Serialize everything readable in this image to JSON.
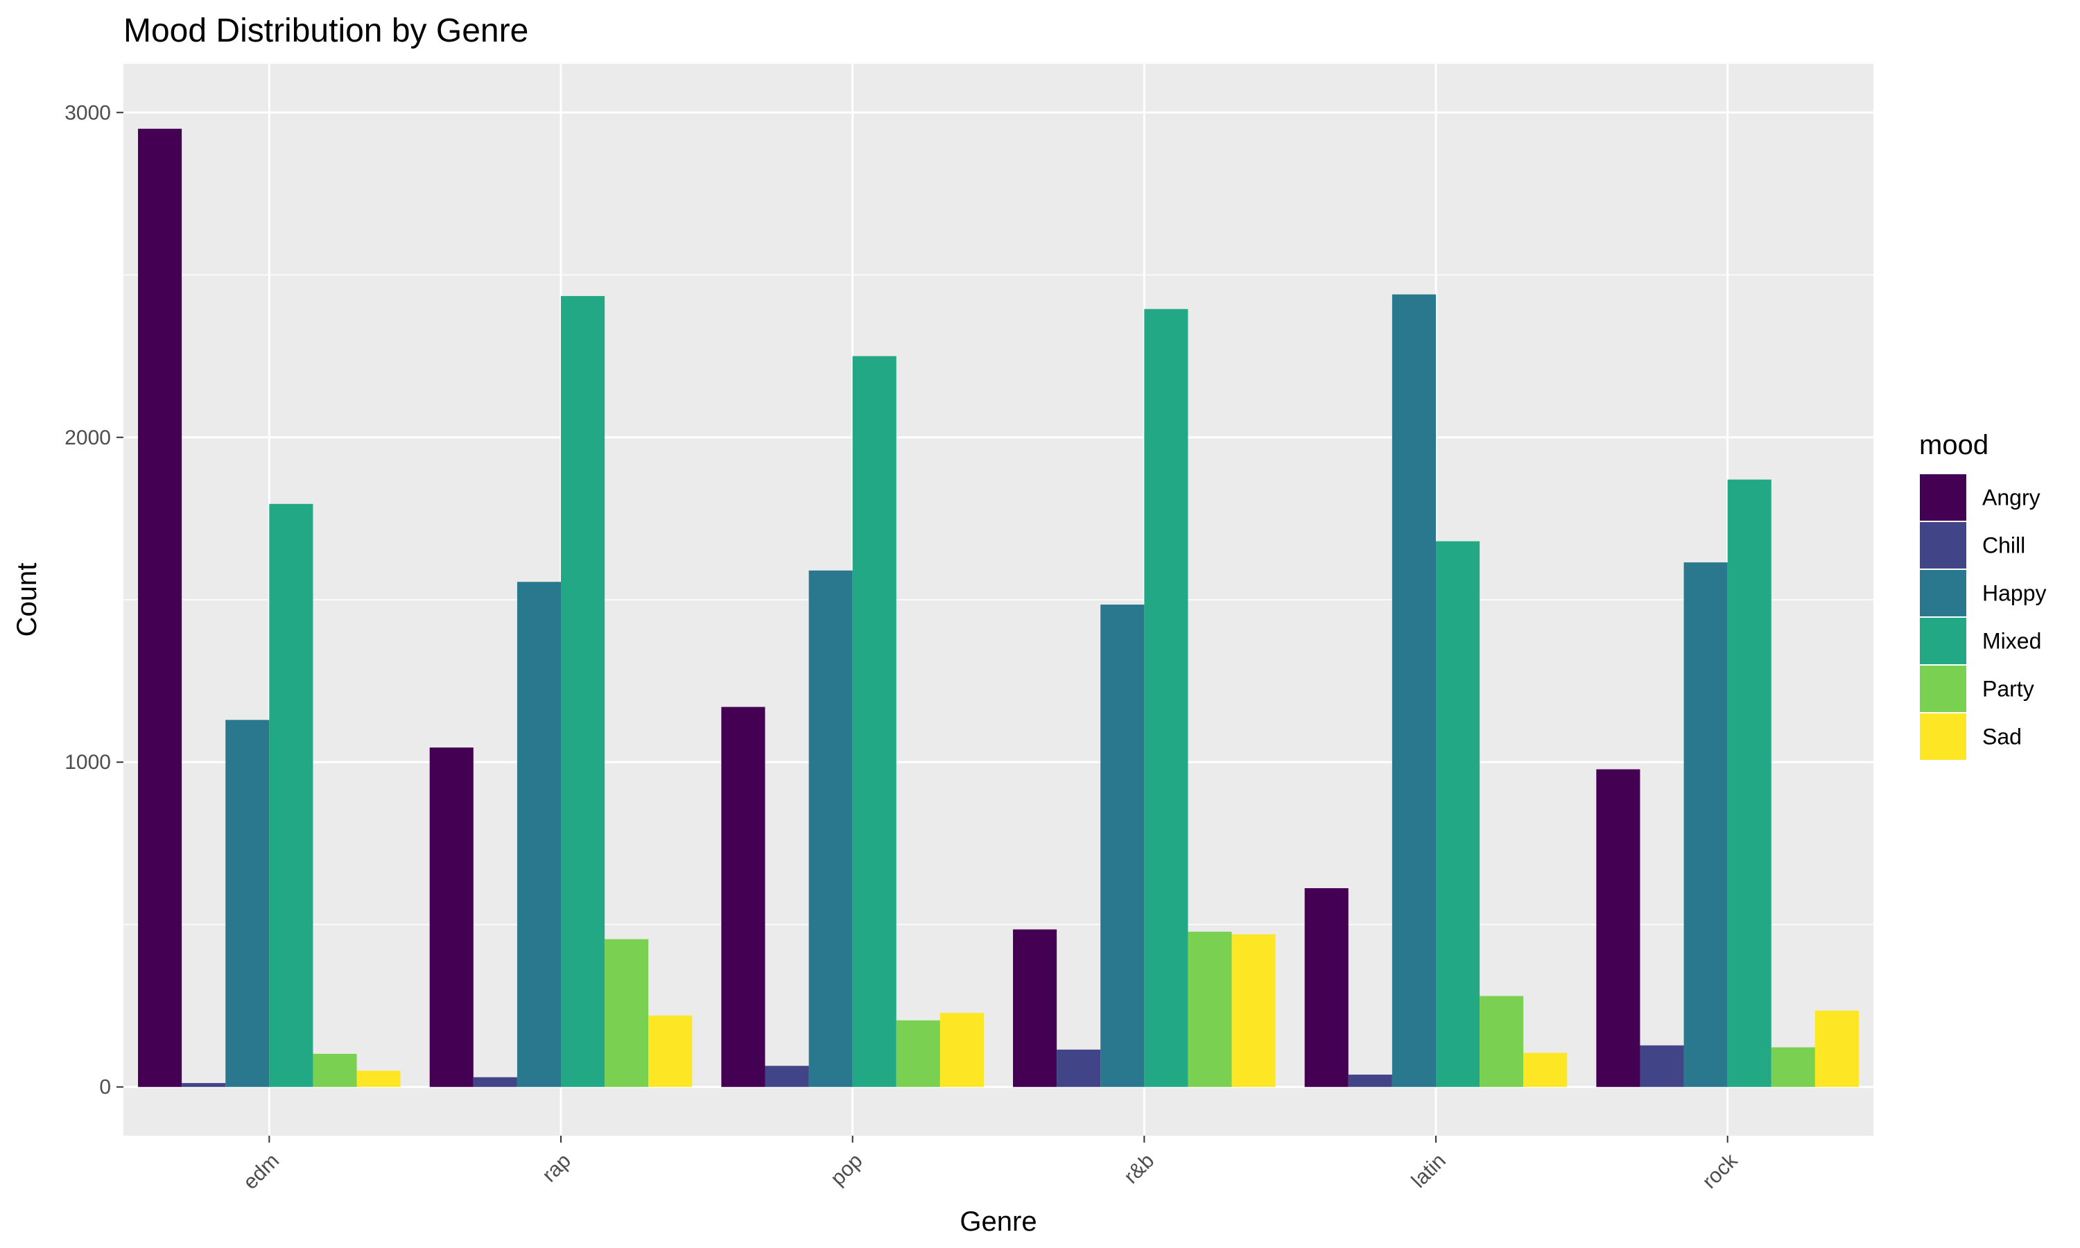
{
  "chart_data": {
    "type": "bar",
    "title": "Mood Distribution by Genre",
    "xlabel": "Genre",
    "ylabel": "Count",
    "categories": [
      "edm",
      "rap",
      "pop",
      "r&b",
      "latin",
      "rock"
    ],
    "yticks": [
      0,
      1000,
      2000,
      3000
    ],
    "ylim": [
      -150,
      3150
    ],
    "grid": true,
    "legend": {
      "title": "mood",
      "placement": "right"
    },
    "series": [
      {
        "name": "Angry",
        "color": "#440154",
        "values": [
          2950,
          1045,
          1170,
          485,
          612,
          978
        ]
      },
      {
        "name": "Chill",
        "color": "#414487",
        "values": [
          12,
          30,
          65,
          115,
          38,
          128
        ]
      },
      {
        "name": "Happy",
        "color": "#2A788E",
        "values": [
          1130,
          1555,
          1590,
          1485,
          2440,
          1615
        ]
      },
      {
        "name": "Mixed",
        "color": "#22A884",
        "values": [
          1795,
          2435,
          2250,
          2395,
          1680,
          1870
        ]
      },
      {
        "name": "Party",
        "color": "#7AD151",
        "values": [
          102,
          455,
          205,
          478,
          280,
          122
        ]
      },
      {
        "name": "Sad",
        "color": "#FDE725",
        "values": [
          50,
          220,
          228,
          470,
          105,
          235
        ]
      }
    ]
  }
}
